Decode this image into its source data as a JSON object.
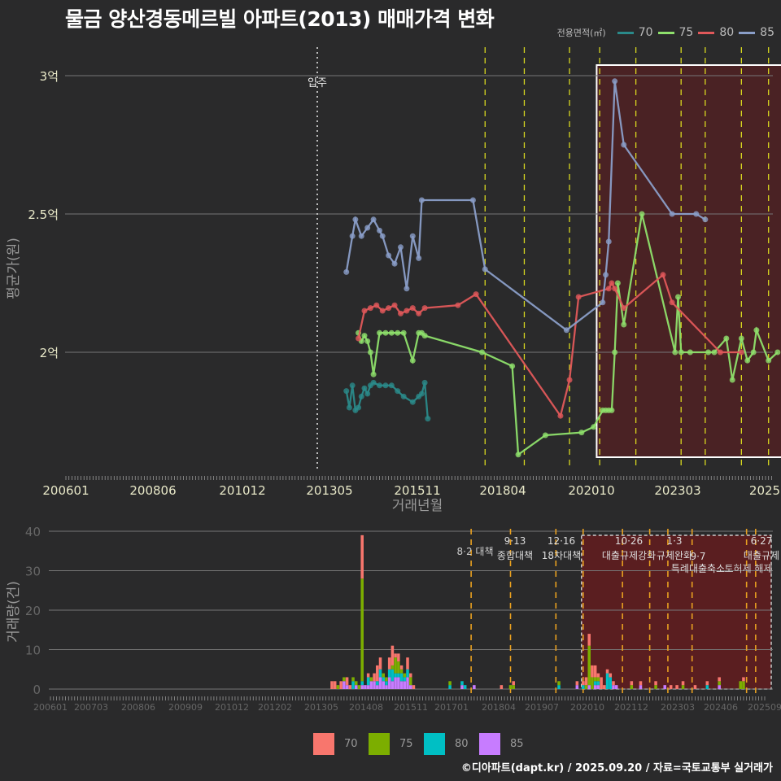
{
  "title": "물금 양산경동메르빌 아파트(2013) 매매가격 변화",
  "legend_top": {
    "label": "전용면적(㎡)",
    "items": [
      {
        "name": "70",
        "color": "#2a8a8a"
      },
      {
        "name": "75",
        "color": "#8ee06c"
      },
      {
        "name": "80",
        "color": "#e0585a"
      },
      {
        "name": "85",
        "color": "#8a9ec8"
      }
    ]
  },
  "bottom_legend": {
    "items": [
      {
        "name": "70",
        "color": "#f8766d"
      },
      {
        "name": "75",
        "color": "#7cae00"
      },
      {
        "name": "80",
        "color": "#00bfc4"
      },
      {
        "name": "85",
        "color": "#c77cff"
      }
    ]
  },
  "credit": "©디아파트(dapt.kr) / 2025.09.20 / 자료=국토교통부 실거래가",
  "chart_data": [
    {
      "type": "line",
      "title": "물금 양산경동메르빌 아파트(2013) 매매가격 변화",
      "xlabel": "거래년월",
      "ylabel": "평균가(원)",
      "x_ticks": [
        "200601",
        "200806",
        "201012",
        "201305",
        "201511",
        "201804",
        "202010",
        "202303",
        "2025"
      ],
      "y_ticks": [
        "2억",
        "2.5억",
        "3억"
      ],
      "ylim": [
        1.6,
        3.05
      ],
      "grid": true,
      "legend_position": "top-right",
      "annotations": [
        {
          "type": "vline-dotted",
          "x": "201306",
          "label": "입주"
        },
        {
          "type": "vline-dashed",
          "x": [
            "201708",
            "201809",
            "201912",
            "202010",
            "202110",
            "202301",
            "202309",
            "202409",
            "202506"
          ]
        },
        {
          "type": "highlight-box",
          "x_range": [
            "202009",
            "202509"
          ]
        }
      ],
      "series": [
        {
          "name": "70",
          "x": [
            "201310",
            "201311",
            "201312",
            "201401",
            "201402",
            "201403",
            "201404",
            "201405",
            "201406",
            "201407",
            "201409",
            "201411",
            "201501",
            "201503",
            "201505",
            "201508",
            "201510",
            "201511",
            "201512",
            "201601"
          ],
          "values": [
            1.86,
            1.8,
            1.88,
            1.79,
            1.8,
            1.84,
            1.87,
            1.85,
            1.88,
            1.89,
            1.88,
            1.88,
            1.88,
            1.86,
            1.84,
            1.82,
            1.84,
            1.85,
            1.89,
            1.76
          ]
        },
        {
          "name": "75",
          "x": [
            "201402",
            "201403",
            "201404",
            "201405",
            "201406",
            "201407",
            "201409",
            "201411",
            "201501",
            "201503",
            "201505",
            "201508",
            "201510",
            "201511",
            "201512",
            "201707",
            "201805",
            "201807",
            "201904",
            "202004",
            "202008",
            "202011",
            "202012",
            "202101",
            "202102",
            "202103",
            "202104",
            "202106",
            "202112",
            "202211",
            "202212",
            "202301",
            "202304",
            "202310",
            "202312",
            "202404",
            "202406",
            "202409",
            "202411",
            "202501",
            "202502",
            "202506",
            "202509"
          ],
          "values": [
            2.07,
            2.04,
            2.06,
            2.04,
            2.0,
            1.92,
            2.07,
            2.07,
            2.07,
            2.07,
            2.07,
            1.97,
            2.07,
            2.07,
            2.06,
            2.0,
            1.95,
            1.63,
            1.7,
            1.71,
            1.73,
            1.79,
            1.79,
            1.79,
            1.79,
            2.0,
            2.25,
            2.1,
            2.5,
            2.0,
            2.2,
            2.0,
            2.0,
            2.0,
            2.0,
            2.05,
            1.9,
            2.05,
            1.97,
            2.0,
            2.08,
            1.97,
            2.0
          ]
        },
        {
          "name": "80",
          "x": [
            "201402",
            "201404",
            "201406",
            "201408",
            "201410",
            "201412",
            "201502",
            "201504",
            "201506",
            "201508",
            "201510",
            "201512",
            "201611",
            "201705",
            "201909",
            "201912",
            "202003",
            "202101",
            "202102",
            "202103",
            "202106",
            "202207",
            "202210",
            "202402",
            "202409"
          ],
          "values": [
            2.05,
            2.15,
            2.16,
            2.17,
            2.15,
            2.16,
            2.17,
            2.14,
            2.15,
            2.16,
            2.14,
            2.16,
            2.17,
            2.21,
            1.77,
            1.9,
            2.2,
            2.23,
            2.25,
            2.23,
            2.16,
            2.28,
            2.18,
            2.0,
            2.0
          ]
        },
        {
          "name": "85",
          "x": [
            "201310",
            "201312",
            "201401",
            "201403",
            "201405",
            "201407",
            "201409",
            "201410",
            "201412",
            "201502",
            "201504",
            "201506",
            "201508",
            "201510",
            "201511",
            "201704",
            "201708",
            "201911",
            "202011",
            "202012",
            "202101",
            "202103",
            "202106",
            "202210",
            "202306",
            "202309"
          ],
          "values": [
            2.29,
            2.42,
            2.48,
            2.42,
            2.45,
            2.48,
            2.44,
            2.42,
            2.35,
            2.32,
            2.38,
            2.23,
            2.42,
            2.34,
            2.55,
            2.55,
            2.3,
            2.08,
            2.18,
            2.28,
            2.4,
            2.98,
            2.75,
            2.5,
            2.5,
            2.48
          ]
        }
      ]
    },
    {
      "type": "bar",
      "stacked": true,
      "xlabel": "",
      "ylabel": "거래량(건)",
      "x_ticks": [
        "200601",
        "200703",
        "200806",
        "200909",
        "201012",
        "201202",
        "201305",
        "201408",
        "201511",
        "201701",
        "201804",
        "201907",
        "202010",
        "202112",
        "202303",
        "202406",
        "202509"
      ],
      "y_ticks": [
        0,
        10,
        20,
        30,
        40
      ],
      "ylim": [
        0,
        42
      ],
      "grid": true,
      "legend_position": "bottom",
      "annotations": [
        {
          "x": "201708",
          "label": "8·2 대책"
        },
        {
          "x": "201809",
          "label": "9·13 종합대책"
        },
        {
          "x": "201912",
          "label": "12·16 18차대책"
        },
        {
          "x": "202110",
          "label": "10·26 대출규제강화"
        },
        {
          "x": "202301",
          "label": "1·3 규제완화"
        },
        {
          "x": "202309",
          "label": "9·7 특례대출축소"
        },
        {
          "x": "202506",
          "label": "6·27 대출규제"
        },
        {
          "x": "202503",
          "label": "토허제 해제"
        }
      ],
      "categories": [
        "201310",
        "201311",
        "201312",
        "201401",
        "201402",
        "201403",
        "201404",
        "201405",
        "201406",
        "201407",
        "201408",
        "201409",
        "201410",
        "201411",
        "201412",
        "201501",
        "201502",
        "201503",
        "201504",
        "201505",
        "201506",
        "201507",
        "201508",
        "201509",
        "201510",
        "201511",
        "201512",
        "201601",
        "201701",
        "201705",
        "201706",
        "201709",
        "201806",
        "201809",
        "201810",
        "202001",
        "202007",
        "202009",
        "202010",
        "202011",
        "202012",
        "202101",
        "202102",
        "202103",
        "202104",
        "202105",
        "202106",
        "202107",
        "202108",
        "202201",
        "202204",
        "202209",
        "202212",
        "202302",
        "202304",
        "202306",
        "202310",
        "202402",
        "202406",
        "202501",
        "202502"
      ],
      "series": [
        {
          "name": "70",
          "values": [
            2,
            2,
            0,
            2,
            0,
            2,
            1,
            0,
            0,
            0,
            11,
            0,
            1,
            0,
            2,
            4,
            3,
            0,
            0,
            3,
            5,
            1,
            2,
            1,
            0,
            3,
            1,
            1,
            0,
            0,
            0,
            0,
            1,
            0,
            1,
            0,
            1,
            1,
            2,
            3,
            3,
            3,
            1,
            3,
            1,
            1,
            1,
            1,
            0,
            1,
            1,
            1,
            0,
            1,
            1,
            1,
            1,
            1,
            1,
            0,
            1
          ]
        },
        {
          "name": "75",
          "values": [
            0,
            0,
            1,
            0,
            1,
            0,
            0,
            1,
            1,
            1,
            26,
            0,
            0,
            1,
            0,
            0,
            0,
            1,
            1,
            0,
            1,
            4,
            3,
            1,
            1,
            0,
            2,
            0,
            1,
            0,
            0,
            0,
            0,
            1,
            1,
            1,
            0,
            0,
            1,
            10,
            3,
            1,
            1,
            0,
            0,
            0,
            0,
            0,
            0,
            1,
            0,
            1,
            0,
            0,
            0,
            1,
            0,
            0,
            1,
            2,
            2
          ]
        },
        {
          "name": "80",
          "values": [
            0,
            0,
            0,
            0,
            0,
            0,
            0,
            2,
            0,
            0,
            1,
            0,
            2,
            0,
            0,
            1,
            2,
            1,
            1,
            2,
            3,
            1,
            1,
            2,
            1,
            2,
            0,
            0,
            1,
            1,
            1,
            0,
            0,
            0,
            0,
            1,
            0,
            1,
            0,
            0,
            0,
            1,
            1,
            0,
            0,
            4,
            3,
            0,
            0,
            0,
            0,
            0,
            0,
            0,
            0,
            0,
            0,
            1,
            0,
            0,
            0
          ]
        },
        {
          "name": "85",
          "values": [
            0,
            0,
            0,
            0,
            2,
            1,
            0,
            0,
            1,
            0,
            1,
            1,
            1,
            2,
            2,
            1,
            3,
            2,
            1,
            3,
            2,
            3,
            3,
            2,
            2,
            3,
            1,
            0,
            0,
            1,
            0,
            1,
            0,
            0,
            0,
            0,
            1,
            0,
            0,
            1,
            0,
            1,
            1,
            0,
            0,
            0,
            0,
            1,
            1,
            0,
            1,
            0,
            1,
            0,
            0,
            0,
            0,
            0,
            1,
            0,
            0
          ]
        }
      ]
    }
  ],
  "upper": {
    "y_tick_labels": [
      "3억",
      "2.5억",
      "2억"
    ],
    "x_tick_labels": [
      "200601",
      "200806",
      "201012",
      "201305",
      "201511",
      "201804",
      "202010",
      "202303",
      "2025"
    ],
    "ylabel": "평균가(원)",
    "xlabel": "거래년월",
    "move_in_label": "입주"
  },
  "lower": {
    "y_tick_labels": [
      "40",
      "30",
      "20",
      "10",
      "0"
    ],
    "x_tick_labels": [
      "200601",
      "200703",
      "200806",
      "200909",
      "201012",
      "201202",
      "201305",
      "201408",
      "201511",
      "201701",
      "201804",
      "201907",
      "202010",
      "202112",
      "202303",
      "202406",
      "202509"
    ],
    "ylabel": "거래량(건)",
    "policy_labels": [
      {
        "line1": "",
        "line2": "8·2 대책"
      },
      {
        "line1": "9·13",
        "line2": "종합대책"
      },
      {
        "line1": "12·16",
        "line2": "18차대책"
      },
      {
        "line1": "10·26",
        "line2": "대출규제강화"
      },
      {
        "line1": "1·3",
        "line2": "규제완화"
      },
      {
        "line1": "9·7",
        "line2": "특례대출축소"
      },
      {
        "line1": "",
        "line2": "토허제 해제"
      },
      {
        "line1": "6·27",
        "line2": "대출규제"
      }
    ]
  }
}
